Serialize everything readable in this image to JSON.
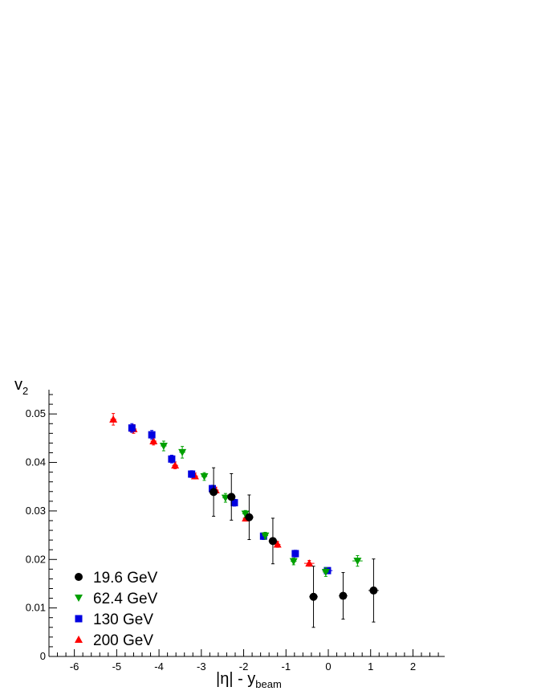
{
  "chart_data": {
    "type": "scatter",
    "title": "",
    "xlabel": "|η| - y",
    "xlabel_sub": "beam",
    "ylabel": "v",
    "ylabel_sub": "2",
    "xlim": [
      -6.6,
      2.75
    ],
    "ylim": [
      0,
      0.055
    ],
    "xticks": [
      "-6",
      "-5",
      "-4",
      "-3",
      "-2",
      "-1",
      "0",
      "1",
      "2"
    ],
    "yticks": [
      "0",
      "0.01",
      "0.02",
      "0.03",
      "0.04",
      "0.05"
    ],
    "grid": false,
    "legend_position": "bottom-left",
    "series": [
      {
        "name": "19.6 GeV",
        "marker": "circle",
        "color": "#000000",
        "points": [
          {
            "x": -2.71,
            "y": 0.0339,
            "err": 0.005,
            "xerr": 0.1
          },
          {
            "x": -2.29,
            "y": 0.0329,
            "err": 0.0048,
            "xerr": 0.1
          },
          {
            "x": -1.87,
            "y": 0.0287,
            "err": 0.0046,
            "xerr": 0.1
          },
          {
            "x": -1.31,
            "y": 0.0238,
            "err": 0.0047,
            "xerr": 0.1
          },
          {
            "x": -0.35,
            "y": 0.0123,
            "err": 0.0063,
            "xerr": 0.1
          },
          {
            "x": 0.35,
            "y": 0.0125,
            "err": 0.0048,
            "xerr": 0.1
          },
          {
            "x": 1.07,
            "y": 0.0136,
            "err": 0.0065,
            "xerr": 0.12
          }
        ]
      },
      {
        "name": "62.4 GeV",
        "marker": "triangle-down",
        "color": "#00a000",
        "points": [
          {
            "x": -3.89,
            "y": 0.0434,
            "err": 0.001
          },
          {
            "x": -3.45,
            "y": 0.0421,
            "err": 0.0012
          },
          {
            "x": -2.93,
            "y": 0.0371,
            "err": 0.0008
          },
          {
            "x": -2.43,
            "y": 0.0327,
            "err": 0.0009
          },
          {
            "x": -1.96,
            "y": 0.0294,
            "err": 0.0007
          },
          {
            "x": -1.49,
            "y": 0.0249,
            "err": 0.0007
          },
          {
            "x": -0.82,
            "y": 0.0196,
            "err": 0.0007
          },
          {
            "x": -0.06,
            "y": 0.0174,
            "err": 0.0009
          },
          {
            "x": 0.69,
            "y": 0.0197,
            "err": 0.0011,
            "xerr": 0.12
          }
        ]
      },
      {
        "name": "130 GeV",
        "marker": "square",
        "color": "#0000e0",
        "points": [
          {
            "x": -4.64,
            "y": 0.0471,
            "err": 0.0009
          },
          {
            "x": -4.17,
            "y": 0.0457,
            "err": 0.0009
          },
          {
            "x": -3.7,
            "y": 0.0407,
            "err": 0.0008
          },
          {
            "x": -3.23,
            "y": 0.0376,
            "err": 0.0007
          },
          {
            "x": -2.74,
            "y": 0.0346,
            "err": 0.0007
          },
          {
            "x": -2.22,
            "y": 0.0317,
            "err": 0.0007
          },
          {
            "x": -1.53,
            "y": 0.0248,
            "err": 0.0007
          },
          {
            "x": -0.78,
            "y": 0.0212,
            "err": 0.0007
          },
          {
            "x": -0.02,
            "y": 0.0177,
            "err": 0.0006,
            "xerr": 0.12
          }
        ]
      },
      {
        "name": "200 GeV",
        "marker": "triangle-up",
        "color": "#ff0000",
        "points": [
          {
            "x": -5.08,
            "y": 0.0489,
            "err": 0.0012
          },
          {
            "x": -4.6,
            "y": 0.0469,
            "err": 0.0009
          },
          {
            "x": -4.13,
            "y": 0.0444,
            "err": 0.0008
          },
          {
            "x": -3.62,
            "y": 0.0394,
            "err": 0.0007
          },
          {
            "x": -3.15,
            "y": 0.0372,
            "err": 0.0006
          },
          {
            "x": -2.66,
            "y": 0.0343,
            "err": 0.0006
          },
          {
            "x": -1.95,
            "y": 0.0285,
            "err": 0.0006
          },
          {
            "x": -1.2,
            "y": 0.0231,
            "err": 0.0006
          },
          {
            "x": -0.45,
            "y": 0.0192,
            "err": 0.0006,
            "xerr": 0.12
          }
        ]
      }
    ]
  }
}
